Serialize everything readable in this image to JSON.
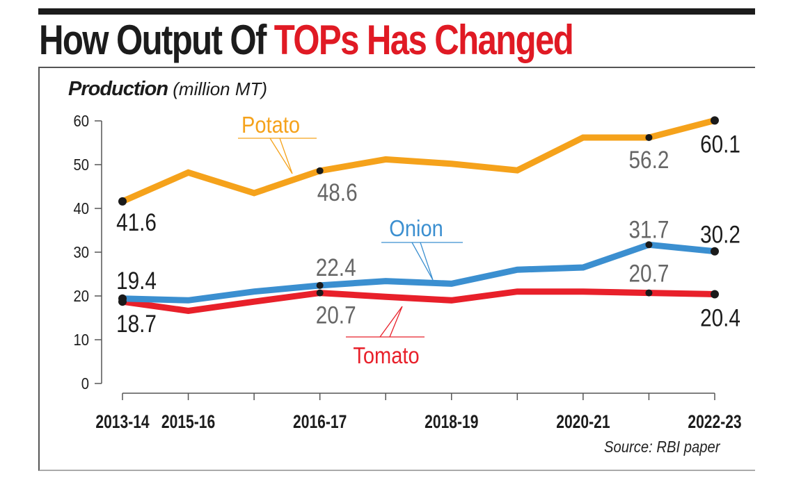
{
  "headline": {
    "part1": "How Output Of ",
    "part2": "TOPs Has Changed"
  },
  "subtitle": {
    "bold": "Production",
    "unit": " (million MT)"
  },
  "source": "Source: RBI paper",
  "colors": {
    "potato": "#f5a21b",
    "onion": "#3b8fd0",
    "tomato": "#e8202a",
    "axis": "#555555",
    "label_dark": "#1c1c1c",
    "label_grey": "#666666"
  },
  "chart_data": {
    "type": "line",
    "title": "How Output Of TOPs Has Changed",
    "ylabel": "Production (million MT)",
    "xlabel": "",
    "ylim": [
      0,
      60
    ],
    "yticks": [
      0,
      10,
      20,
      30,
      40,
      50,
      60
    ],
    "x_points": 10,
    "xtick_labels": [
      {
        "index": 0,
        "label": "2013-14"
      },
      {
        "index": 1,
        "label": "2015-16"
      },
      {
        "index": 3,
        "label": "2016-17"
      },
      {
        "index": 5,
        "label": "2018-19"
      },
      {
        "index": 7,
        "label": "2020-21"
      },
      {
        "index": 9,
        "label": "2022-23"
      }
    ],
    "grid": false,
    "series": [
      {
        "name": "Potato",
        "color": "#f5a21b",
        "values": [
          41.6,
          48.2,
          43.5,
          48.6,
          51.2,
          50.2,
          48.7,
          56.2,
          56.2,
          60.1
        ]
      },
      {
        "name": "Onion",
        "color": "#3b8fd0",
        "values": [
          19.4,
          19.0,
          21.0,
          22.4,
          23.4,
          22.8,
          26.0,
          26.5,
          31.7,
          30.2
        ]
      },
      {
        "name": "Tomato",
        "color": "#e8202a",
        "values": [
          18.7,
          16.6,
          18.7,
          20.7,
          19.8,
          19.0,
          21.0,
          21.0,
          20.7,
          20.4
        ]
      }
    ],
    "annotations": [
      {
        "series": "Potato",
        "index": 0,
        "text": "41.6",
        "pos": "below",
        "tone": "dark"
      },
      {
        "series": "Potato",
        "index": 3,
        "text": "48.6",
        "pos": "below",
        "tone": "grey"
      },
      {
        "series": "Potato",
        "index": 8,
        "text": "56.2",
        "pos": "below",
        "tone": "grey"
      },
      {
        "series": "Potato",
        "index": 9,
        "text": "60.1",
        "pos": "below",
        "tone": "dark"
      },
      {
        "series": "Onion",
        "index": 0,
        "text": "19.4",
        "pos": "above",
        "tone": "dark"
      },
      {
        "series": "Onion",
        "index": 3,
        "text": "22.4",
        "pos": "above",
        "tone": "grey"
      },
      {
        "series": "Onion",
        "index": 8,
        "text": "31.7",
        "pos": "above",
        "tone": "grey"
      },
      {
        "series": "Onion",
        "index": 9,
        "text": "30.2",
        "pos": "above",
        "tone": "dark"
      },
      {
        "series": "Tomato",
        "index": 0,
        "text": "18.7",
        "pos": "below",
        "tone": "dark"
      },
      {
        "series": "Tomato",
        "index": 3,
        "text": "20.7",
        "pos": "below",
        "tone": "grey"
      },
      {
        "series": "Tomato",
        "index": 8,
        "text": "20.7",
        "pos": "above",
        "tone": "grey"
      },
      {
        "series": "Tomato",
        "index": 9,
        "text": "20.4",
        "pos": "below",
        "tone": "dark"
      }
    ],
    "legend": [
      {
        "series": "Potato",
        "text": "Potato",
        "placement": "above-line"
      },
      {
        "series": "Onion",
        "text": "Onion",
        "placement": "above-line"
      },
      {
        "series": "Tomato",
        "text": "Tomato",
        "placement": "below-line"
      }
    ]
  }
}
